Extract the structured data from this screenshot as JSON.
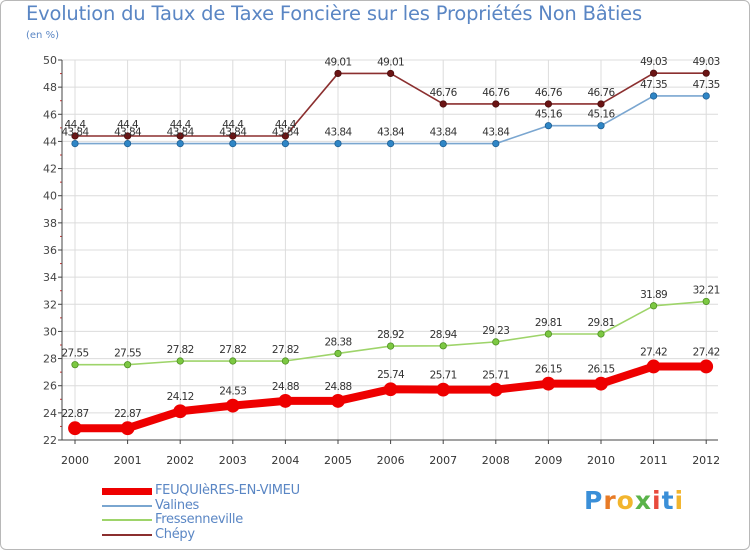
{
  "title": "Evolution du Taux de Taxe Foncière sur les Propriétés Non Bâties",
  "subtitle": "(en %)",
  "brand": {
    "letters": [
      "P",
      "r",
      "o",
      "x",
      "i",
      "t",
      "i"
    ],
    "colors": [
      "#3a8fd8",
      "#e87b26",
      "#f2b52d",
      "#5ab34a",
      "#e84a3c",
      "#3a8fd8",
      "#f2b52d"
    ]
  },
  "chart_data": {
    "type": "line",
    "title": "Evolution du Taux de Taxe Foncière sur les Propriétés Non Bâties",
    "ylabel": "(en %)",
    "xlabel": "",
    "ylim": [
      22,
      50
    ],
    "yticks": [
      22,
      24,
      26,
      28,
      30,
      32,
      34,
      36,
      38,
      40,
      42,
      44,
      46,
      48,
      50
    ],
    "grid": true,
    "categories": [
      "2000",
      "2001",
      "2002",
      "2003",
      "2004",
      "2005",
      "2006",
      "2007",
      "2008",
      "2009",
      "2010",
      "2011",
      "2012"
    ],
    "series": [
      {
        "name": "FEUQUIèRES-EN-VIMEU",
        "color": "#ee0000",
        "values": [
          22.87,
          22.87,
          24.12,
          24.53,
          24.88,
          24.88,
          25.74,
          25.71,
          25.71,
          26.15,
          26.15,
          27.42,
          27.42
        ],
        "labels": [
          "22.87",
          "22.87",
          "24.12",
          "24.53",
          "24.88",
          "24.88",
          "25.74",
          "25.71",
          "25.71",
          "26.15",
          "26.15",
          "27.42",
          "27.42"
        ]
      },
      {
        "name": "Valines",
        "color": "#7aa6d0",
        "values": [
          43.84,
          43.84,
          43.84,
          43.84,
          43.84,
          43.84,
          43.84,
          43.84,
          43.84,
          45.16,
          45.16,
          47.35,
          47.35
        ],
        "labels": [
          "43.84",
          "43.84",
          "43.84",
          "43.84",
          "43.84",
          "43.84",
          "43.84",
          "43.84",
          "43.84",
          "45.16",
          "45.16",
          "47.35",
          "47.35"
        ]
      },
      {
        "name": "Fressenneville",
        "color": "#9ed46a",
        "values": [
          27.55,
          27.55,
          27.82,
          27.82,
          27.82,
          28.38,
          28.92,
          28.94,
          29.23,
          29.81,
          29.81,
          31.89,
          32.21
        ],
        "labels": [
          "27.55",
          "27.55",
          "27.82",
          "27.82",
          "27.82",
          "28.38",
          "28.92",
          "28.94",
          "29.23",
          "29.81",
          "29.81",
          "31.89",
          "32.21"
        ]
      },
      {
        "name": "Chépy",
        "color": "#8b2f2f",
        "values": [
          44.4,
          44.4,
          44.4,
          44.4,
          44.4,
          49.01,
          49.01,
          46.76,
          46.76,
          46.76,
          46.76,
          49.03,
          49.03
        ],
        "labels": [
          "44.4",
          "44.4",
          "44.4",
          "44.4",
          "44.4",
          "49.01",
          "49.01",
          "46.76",
          "46.76",
          "46.76",
          "46.76",
          "49.03",
          "49.03"
        ]
      }
    ]
  }
}
